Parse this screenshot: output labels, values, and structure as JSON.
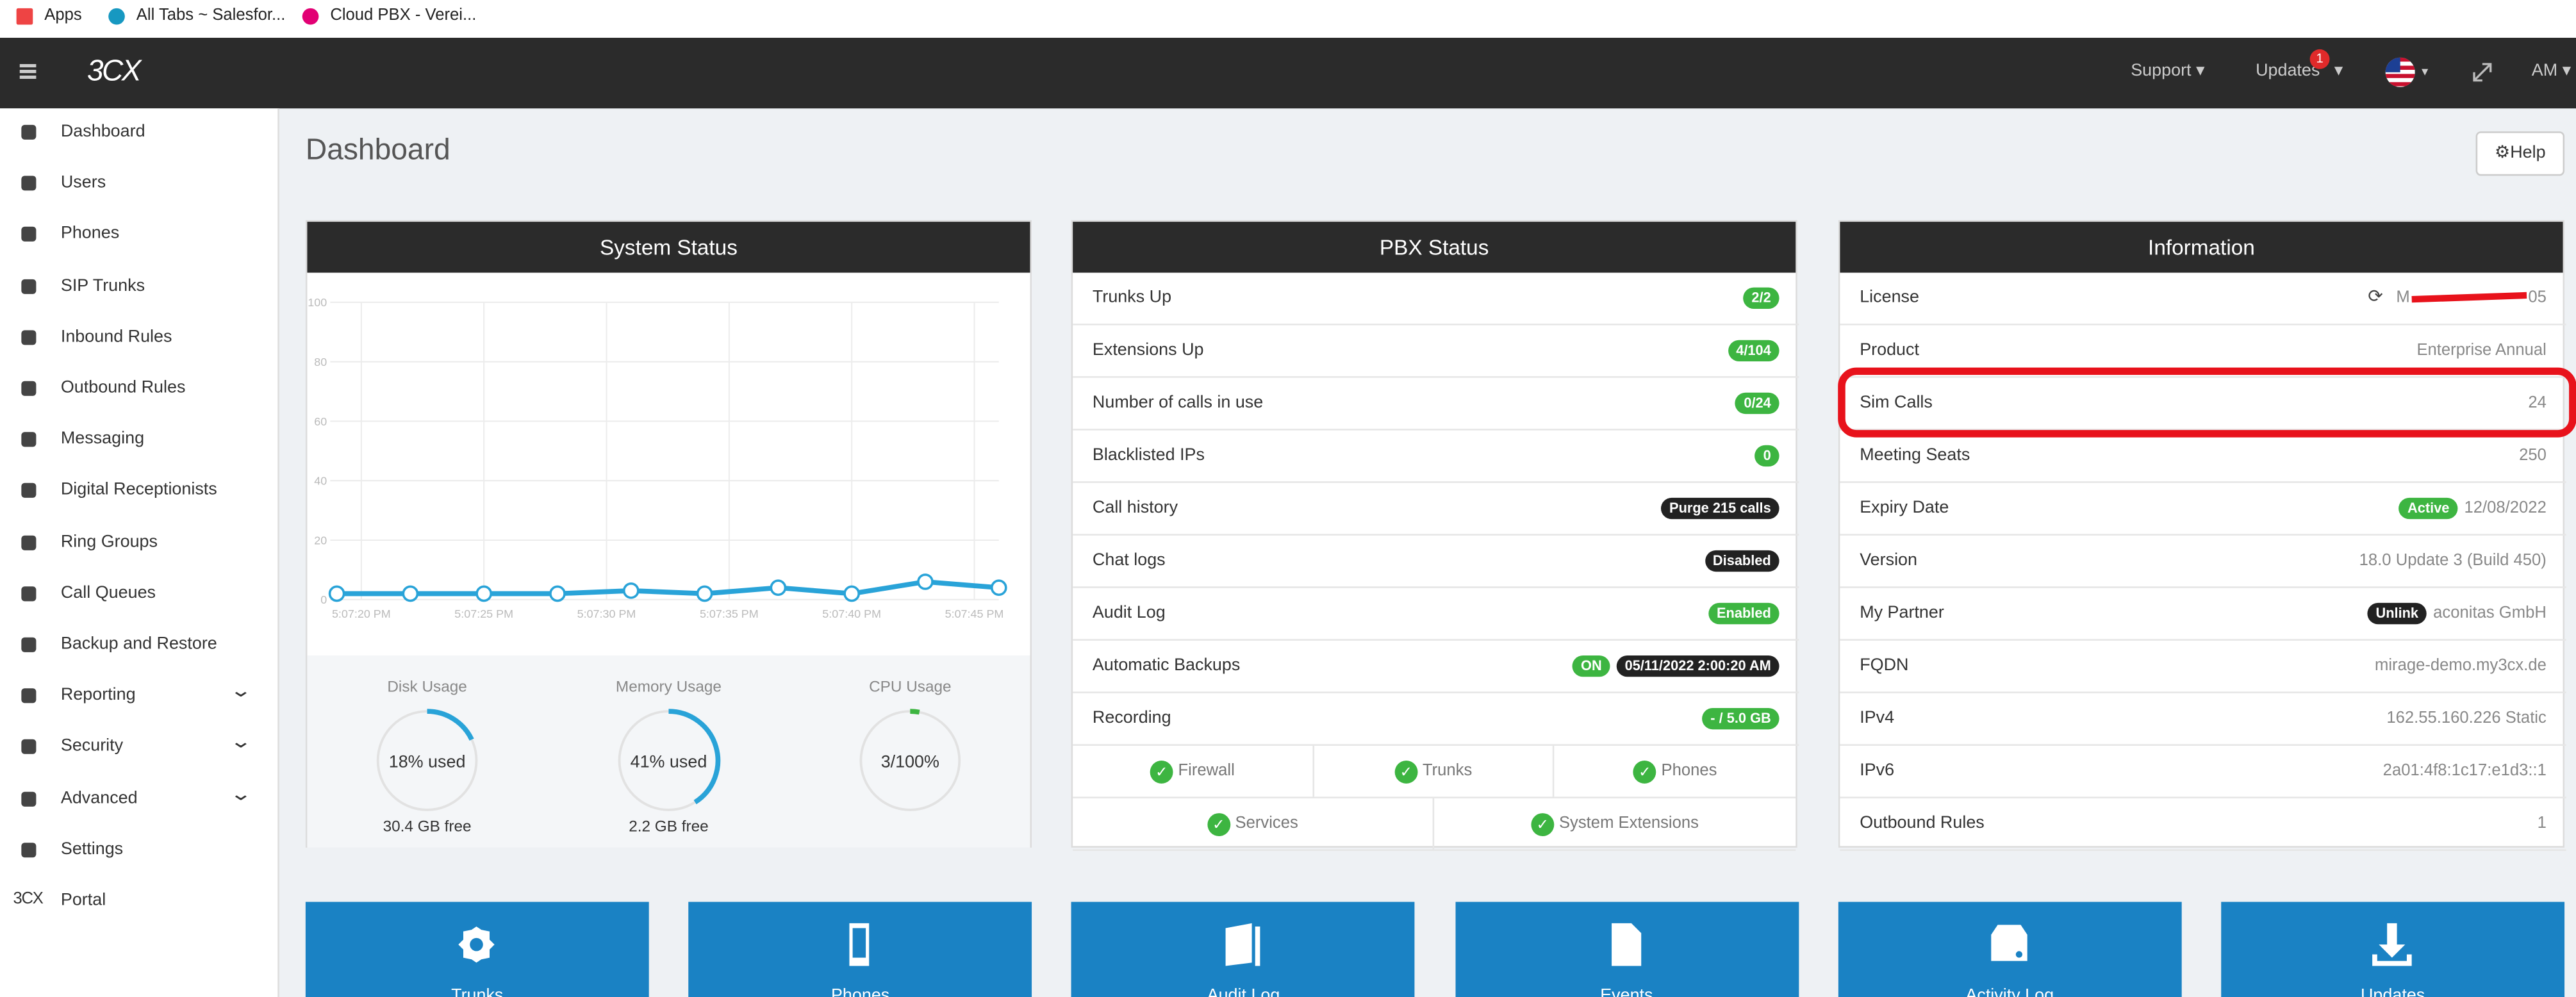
{
  "bookmarks": [
    "Apps",
    "All Tabs ~ Salesfor...",
    "Cloud PBX - Verei..."
  ],
  "nav": {
    "logo": "3CX",
    "support": "Support",
    "updates": "Updates",
    "updates_badge": "1",
    "user": "AM"
  },
  "sidebar": [
    {
      "label": "Dashboard"
    },
    {
      "label": "Users"
    },
    {
      "label": "Phones"
    },
    {
      "label": "SIP Trunks"
    },
    {
      "label": "Inbound Rules"
    },
    {
      "label": "Outbound Rules"
    },
    {
      "label": "Messaging"
    },
    {
      "label": "Digital Receptionists"
    },
    {
      "label": "Ring Groups"
    },
    {
      "label": "Call Queues"
    },
    {
      "label": "Backup and Restore"
    },
    {
      "label": "Reporting",
      "expandable": true
    },
    {
      "label": "Security",
      "expandable": true
    },
    {
      "label": "Advanced",
      "expandable": true
    },
    {
      "label": "Settings"
    },
    {
      "label": "Portal",
      "icon_text": "3CX"
    }
  ],
  "page_title": "Dashboard",
  "help": "Help",
  "system_status": {
    "title": "System Status",
    "gauges": [
      {
        "name": "Disk Usage",
        "label": "18% used",
        "value": 18,
        "note": "30.4 GB free",
        "color": "#29a3d8"
      },
      {
        "name": "Memory Usage",
        "label": "41% used",
        "value": 41,
        "note": "2.2 GB free",
        "color": "#29a3d8"
      },
      {
        "name": "CPU Usage",
        "label": "3/100%",
        "value": 3,
        "color": "#3db541"
      }
    ]
  },
  "chart_data": {
    "type": "line",
    "x": [
      "5:07:19 PM",
      "5:07:22 PM",
      "5:07:25 PM",
      "5:07:28 PM",
      "5:07:31 PM",
      "5:07:34 PM",
      "5:07:37 PM",
      "5:07:40 PM",
      "5:07:43 PM",
      "5:07:46 PM"
    ],
    "values": [
      2,
      2,
      2,
      2,
      3,
      2,
      4,
      2,
      6,
      4
    ],
    "color": "#29a3d8",
    "xlim": [
      "5:07:19 PM",
      "5:07:46 PM"
    ],
    "xticks": [
      "5:07:20 PM",
      "5:07:25 PM",
      "5:07:30 PM",
      "5:07:35 PM",
      "5:07:40 PM",
      "5:07:45 PM"
    ],
    "ylim": [
      0,
      100
    ],
    "yticks": [
      0,
      20,
      40,
      60,
      80,
      100
    ],
    "grid": true
  },
  "pbx_status": {
    "title": "PBX Status",
    "rows": [
      {
        "label": "Trunks Up",
        "badges": [
          {
            "text": "2/2",
            "color": "#3db541"
          }
        ]
      },
      {
        "label": "Extensions Up",
        "badges": [
          {
            "text": "4/104",
            "color": "#3db541"
          }
        ]
      },
      {
        "label": "Number of calls in use",
        "badges": [
          {
            "text": "0/24",
            "color": "#3db541"
          }
        ]
      },
      {
        "label": "Blacklisted IPs",
        "badges": [
          {
            "text": "0",
            "color": "#3db541"
          }
        ]
      },
      {
        "label": "Call history",
        "badges": [
          {
            "text": "Purge 215 calls",
            "color": "#222222"
          }
        ]
      },
      {
        "label": "Chat logs",
        "badges": [
          {
            "text": "Disabled",
            "color": "#222222"
          }
        ]
      },
      {
        "label": "Audit Log",
        "badges": [
          {
            "text": "Enabled",
            "color": "#3db541"
          }
        ]
      },
      {
        "label": "Automatic Backups",
        "badges": [
          {
            "text": "ON",
            "color": "#3db541"
          },
          {
            "text": "05/11/2022 2:00:20 AM",
            "color": "#222222"
          }
        ]
      },
      {
        "label": "Recording",
        "badges": [
          {
            "text": "- / 5.0 GB",
            "color": "#3db541"
          }
        ]
      }
    ],
    "checks": [
      [
        "Firewall",
        "Trunks",
        "Phones"
      ],
      [
        "Services",
        "System Extensions"
      ]
    ]
  },
  "information": {
    "title": "Information",
    "rows": [
      {
        "label": "License",
        "value": "M",
        "value_end": "05"
      },
      {
        "label": "Product",
        "value": "Enterprise Annual"
      },
      {
        "label": "Sim Calls",
        "value": "24"
      },
      {
        "label": "Meeting Seats",
        "value": "250"
      },
      {
        "label": "Expiry Date",
        "badge": {
          "text": "Active",
          "color": "#3db541"
        },
        "value": "12/08/2022"
      },
      {
        "label": "Version",
        "value": "18.0 Update 3 (Build 450)"
      },
      {
        "label": "My Partner",
        "badge": {
          "text": "Unlink",
          "color": "#222222"
        },
        "value": "aconitas GmbH"
      },
      {
        "label": "FQDN",
        "value": "mirage-demo.my3cx.de"
      },
      {
        "label": "IPv4",
        "value": "162.55.160.226 Static"
      },
      {
        "label": "IPv6",
        "value": "2a01:4f8:1c17:e1d3::1"
      },
      {
        "label": "Outbound Rules",
        "value": "1"
      }
    ]
  },
  "tiles": [
    "Trunks",
    "Phones",
    "Audit Log",
    "Events",
    "Activity Log",
    "Updates"
  ]
}
